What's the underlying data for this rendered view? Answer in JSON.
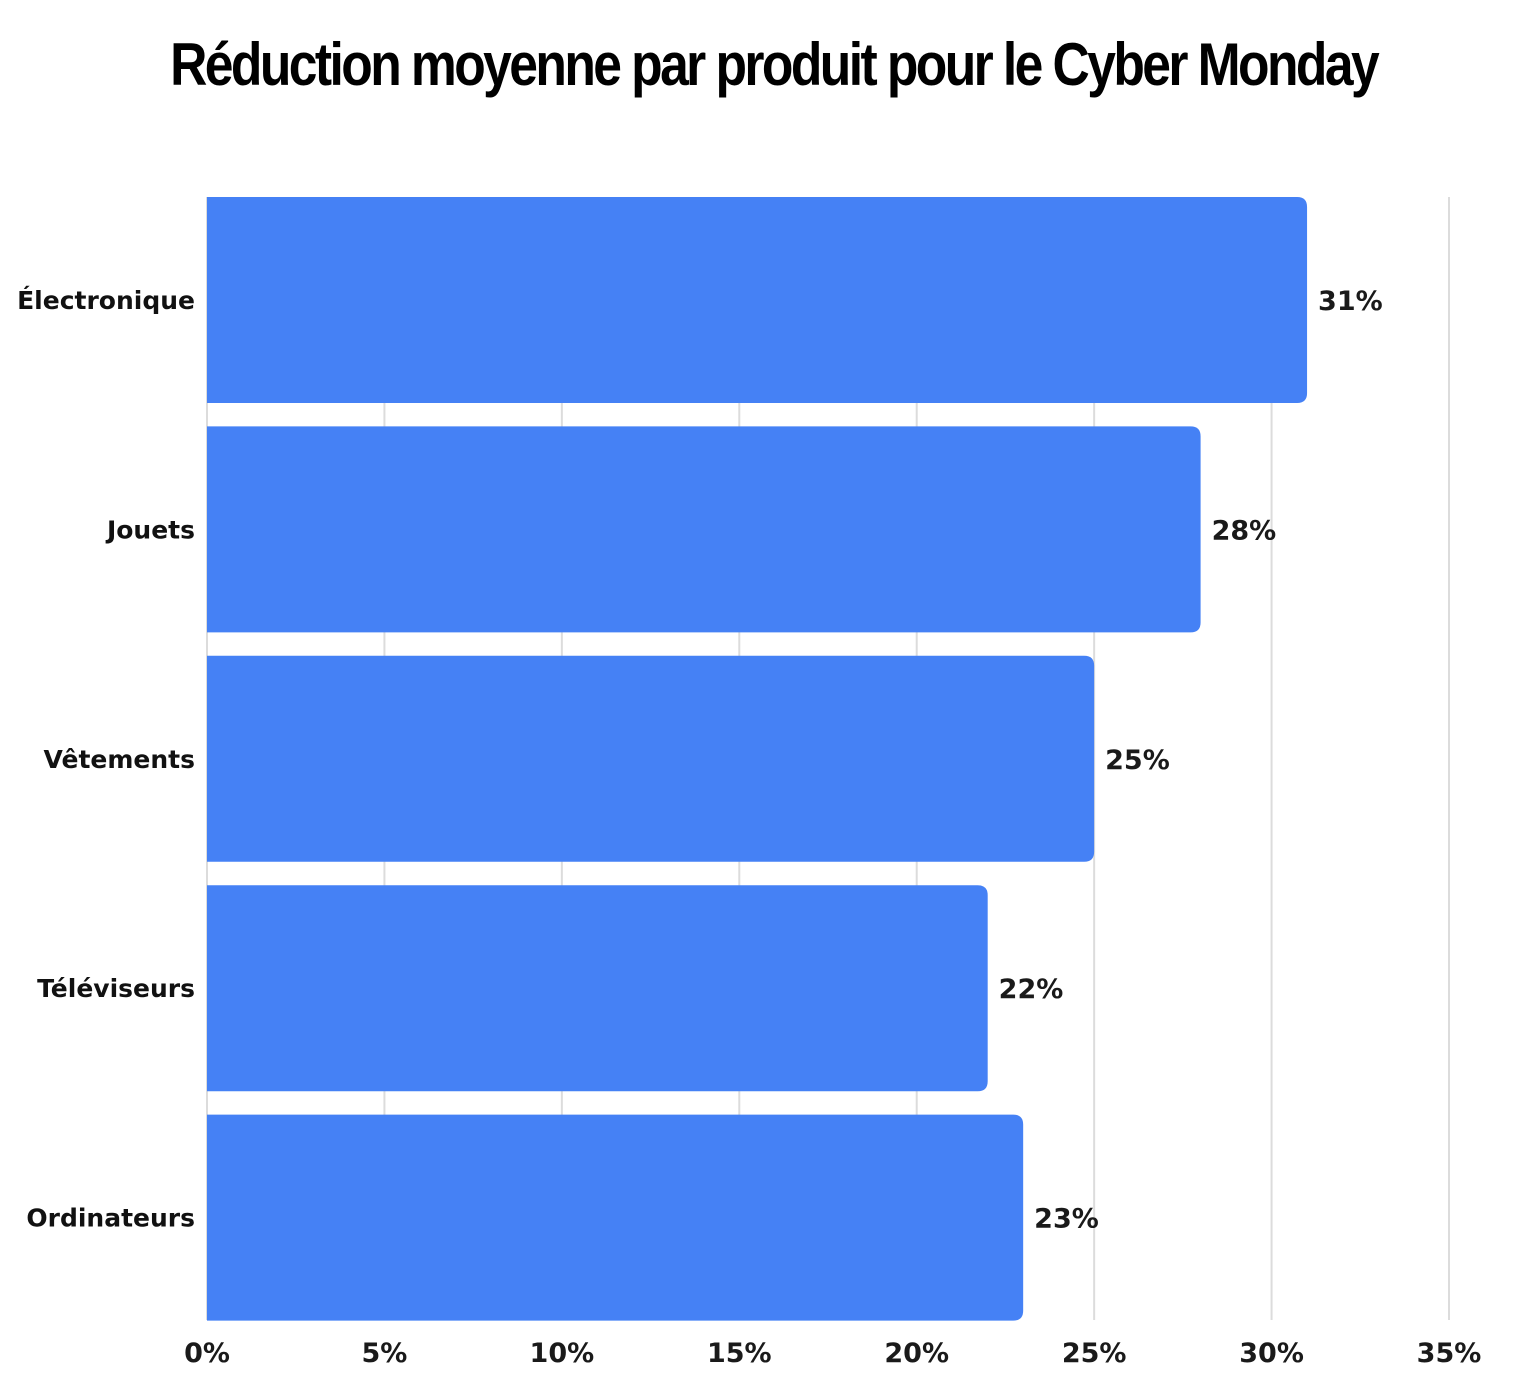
{
  "chart_data": {
    "type": "bar",
    "orientation": "horizontal",
    "title": "Réduction moyenne par produit pour le Cyber Monday",
    "xlabel": "",
    "ylabel": "",
    "categories": [
      "Électronique",
      "Jouets",
      "Vêtements",
      "Téléviseurs",
      "Ordinateurs"
    ],
    "values": [
      31,
      28,
      25,
      22,
      23
    ],
    "value_labels": [
      "31%",
      "28%",
      "25%",
      "22%",
      "23%"
    ],
    "xlim": [
      0,
      35
    ],
    "ticks": [
      0,
      5,
      10,
      15,
      20,
      25,
      30,
      35
    ],
    "tick_labels": [
      "0%",
      "5%",
      "10%",
      "15%",
      "20%",
      "25%",
      "30%",
      "35%"
    ],
    "grid": "vertical",
    "legend": "none",
    "bar_color": "#4581F5",
    "grid_color": "#DCDCDC"
  }
}
